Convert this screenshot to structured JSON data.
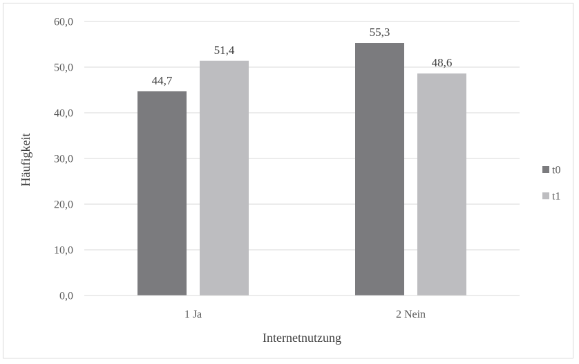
{
  "chart_data": {
    "type": "bar",
    "title": "",
    "xlabel": "Internetnutzung",
    "ylabel": "Häufigkeit",
    "categories": [
      "1 Ja",
      "2 Nein"
    ],
    "series": [
      {
        "name": "t0",
        "values": [
          44.7,
          55.3
        ],
        "labels": [
          "44,7",
          "55,3"
        ],
        "color": "#7b7b7e"
      },
      {
        "name": "t1",
        "values": [
          51.4,
          48.6
        ],
        "labels": [
          "51,4",
          "48,6"
        ],
        "color": "#bdbdc0"
      }
    ],
    "ylim": [
      0,
      60
    ],
    "yticks": [
      0,
      10,
      20,
      30,
      40,
      50,
      60
    ],
    "ytick_labels": [
      "0,0",
      "10,0",
      "20,0",
      "30,0",
      "40,0",
      "50,0",
      "60,0"
    ],
    "grid": true,
    "legend_position": "right",
    "gridline_color": "#d9d9d9"
  }
}
